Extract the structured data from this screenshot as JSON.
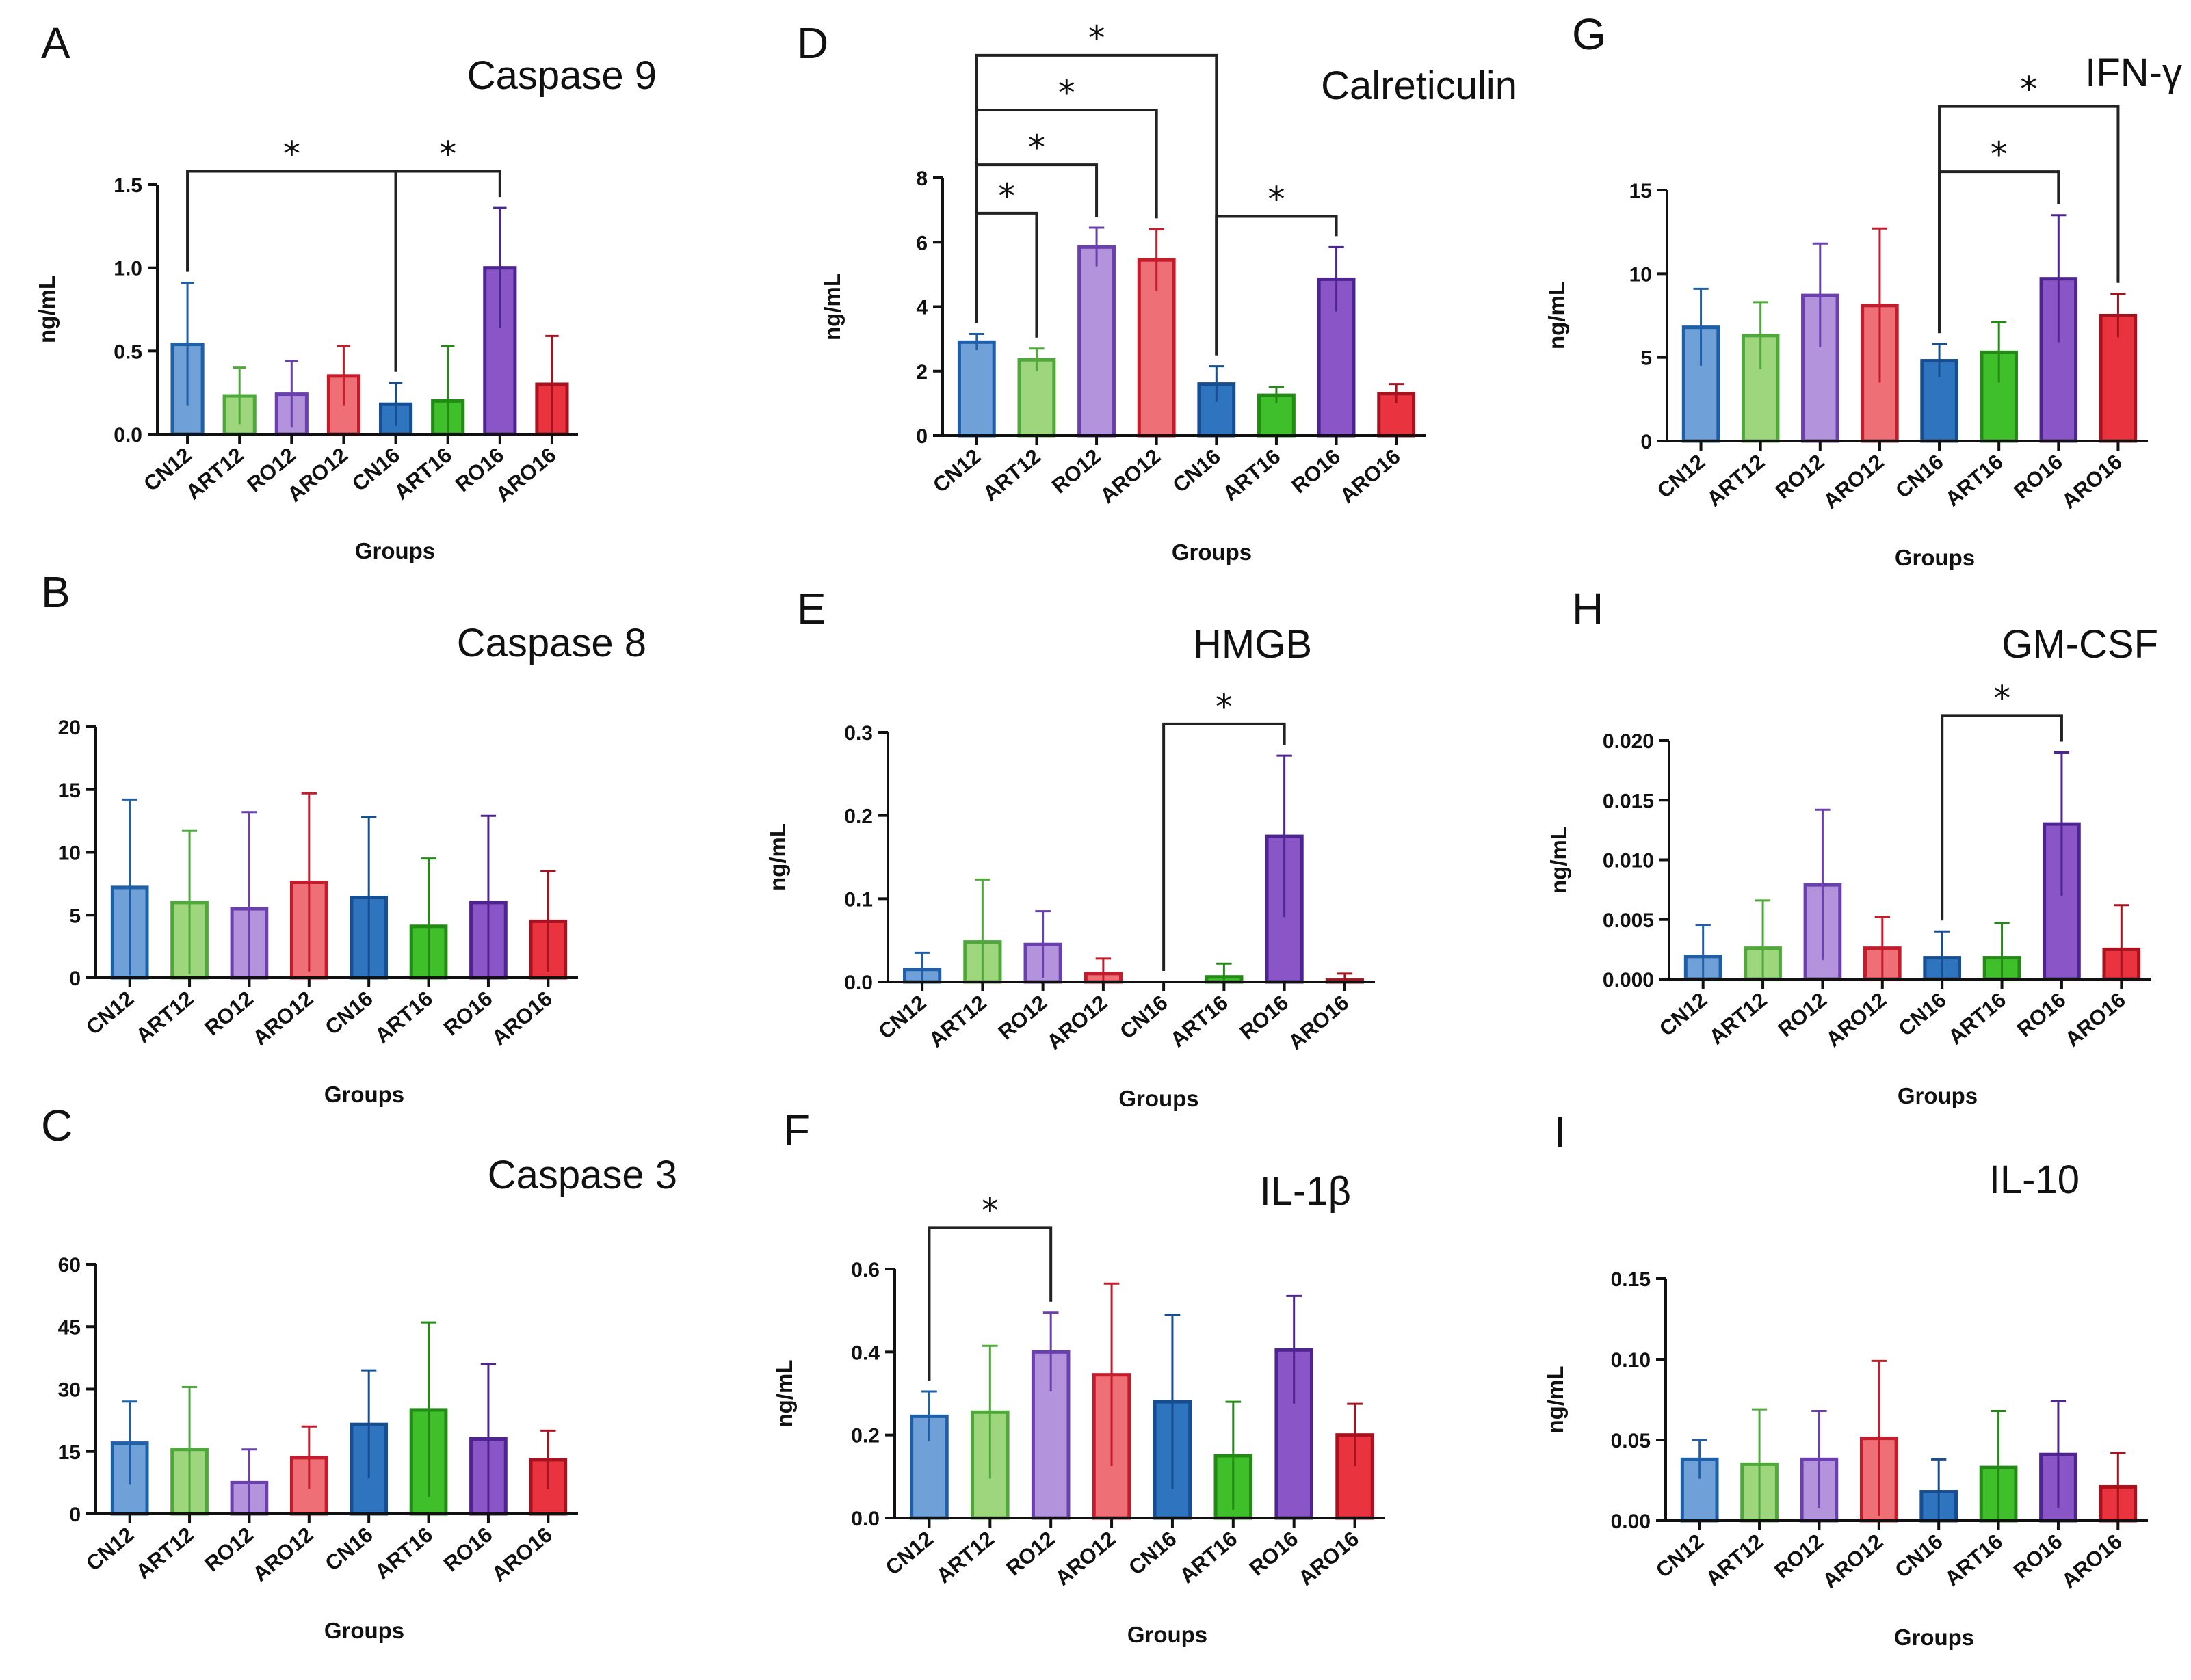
{
  "palette": {
    "CN12": {
      "fill": "#6fa0d8",
      "stroke": "#1f5fa8"
    },
    "ART12": {
      "fill": "#9ed67e",
      "stroke": "#4fa83a"
    },
    "RO12": {
      "fill": "#b394dc",
      "stroke": "#6a3fae"
    },
    "ARO12": {
      "fill": "#ef6f77",
      "stroke": "#c41c2b"
    },
    "CN16": {
      "fill": "#2f74bf",
      "stroke": "#174d91"
    },
    "ART16": {
      "fill": "#3fbf2a",
      "stroke": "#238a16"
    },
    "RO16": {
      "fill": "#8a55c6",
      "stroke": "#4e2590"
    },
    "ARO16": {
      "fill": "#e9333f",
      "stroke": "#a8121e"
    }
  },
  "chart_data": [
    {
      "id": "A",
      "type": "bar",
      "title": "Caspase 9",
      "ylabel": "ng/mL",
      "xlabel": "Groups",
      "categories": [
        "CN12",
        "ART12",
        "RO12",
        "ARO12",
        "CN16",
        "ART16",
        "RO16",
        "ARO16"
      ],
      "values": [
        0.54,
        0.23,
        0.24,
        0.35,
        0.18,
        0.2,
        1.0,
        0.3
      ],
      "errors": [
        0.37,
        0.17,
        0.2,
        0.18,
        0.13,
        0.33,
        0.36,
        0.29
      ],
      "ylim": [
        0,
        1.5
      ],
      "ticks": [
        0,
        0.5,
        1.0,
        1.5
      ],
      "tick_labels": [
        "0.0",
        "0.5",
        "1.0",
        "1.5"
      ],
      "sig": [
        {
          "from": 0,
          "to": 4,
          "level": 1.58,
          "label": "*"
        },
        {
          "from": 4,
          "to": 6,
          "level": 1.58,
          "label": "*"
        }
      ]
    },
    {
      "id": "B",
      "type": "bar",
      "title": "Caspase 8",
      "ylabel": "ng/mL",
      "xlabel": "Groups",
      "categories": [
        "CN12",
        "ART12",
        "RO12",
        "ARO12",
        "CN16",
        "ART16",
        "RO16",
        "ARO16"
      ],
      "values": [
        7.2,
        6.0,
        5.5,
        7.6,
        6.4,
        4.1,
        6.0,
        4.5
      ],
      "errors": [
        7.0,
        5.7,
        7.7,
        7.1,
        6.4,
        5.4,
        6.9,
        4.0
      ],
      "ylim": [
        0,
        20
      ],
      "ticks": [
        0,
        5,
        10,
        15,
        20
      ],
      "tick_labels": [
        "0",
        "5",
        "10",
        "15",
        "20"
      ],
      "sig": []
    },
    {
      "id": "C",
      "type": "bar",
      "title": "Caspase 3",
      "ylabel": "ng/mL",
      "xlabel": "Groups",
      "categories": [
        "CN12",
        "ART12",
        "RO12",
        "ARO12",
        "CN16",
        "ART16",
        "RO16",
        "ARO16"
      ],
      "values": [
        17.0,
        15.5,
        7.5,
        13.5,
        21.5,
        25.0,
        18.0,
        13.0
      ],
      "errors": [
        10.0,
        15.0,
        8.0,
        7.5,
        13.0,
        21.0,
        18.0,
        7.0
      ],
      "ylim": [
        0,
        60
      ],
      "ticks": [
        0,
        15,
        30,
        45,
        60
      ],
      "tick_labels": [
        "0",
        "15",
        "30",
        "45",
        "60"
      ],
      "sig": []
    },
    {
      "id": "D",
      "type": "bar",
      "title": "Calreticulin",
      "ylabel": "ng/mL",
      "xlabel": "Groups",
      "categories": [
        "CN12",
        "ART12",
        "RO12",
        "ARO12",
        "CN16",
        "ART16",
        "RO16",
        "ARO16"
      ],
      "values": [
        2.9,
        2.35,
        5.85,
        5.45,
        1.6,
        1.25,
        4.85,
        1.3
      ],
      "errors": [
        0.25,
        0.35,
        0.6,
        0.95,
        0.55,
        0.25,
        1.0,
        0.3
      ],
      "ylim": [
        0,
        8
      ],
      "ticks": [
        0,
        2,
        4,
        6,
        8
      ],
      "tick_labels": [
        "0",
        "2",
        "4",
        "6",
        "8"
      ],
      "sig": [
        {
          "from": 0,
          "to": 1,
          "level": 6.9,
          "label": "*"
        },
        {
          "from": 0,
          "to": 2,
          "level": 8.4,
          "label": "*"
        },
        {
          "from": 0,
          "to": 3,
          "level": 10.1,
          "label": "*"
        },
        {
          "from": 0,
          "to": 4,
          "level": 11.8,
          "label": "*"
        },
        {
          "from": 4,
          "to": 6,
          "level": 6.8,
          "label": "*"
        }
      ]
    },
    {
      "id": "E",
      "type": "bar",
      "title": "HMGB",
      "ylabel": "ng/mL",
      "xlabel": "Groups",
      "categories": [
        "CN12",
        "ART12",
        "RO12",
        "ARO12",
        "CN16",
        "ART16",
        "RO16",
        "ARO16"
      ],
      "values": [
        0.015,
        0.048,
        0.045,
        0.01,
        0.0,
        0.006,
        0.175,
        0.002
      ],
      "errors": [
        0.02,
        0.075,
        0.04,
        0.018,
        0.0,
        0.016,
        0.097,
        0.008
      ],
      "ylim": [
        0,
        0.3
      ],
      "ticks": [
        0,
        0.1,
        0.2,
        0.3
      ],
      "tick_labels": [
        "0.0",
        "0.1",
        "0.2",
        "0.3"
      ],
      "sig": [
        {
          "from": 4,
          "to": 6,
          "level": 0.31,
          "label": "*"
        }
      ]
    },
    {
      "id": "F",
      "type": "bar",
      "title": "IL-1β",
      "ylabel": "ng/mL",
      "xlabel": "Groups",
      "categories": [
        "CN12",
        "ART12",
        "RO12",
        "ARO12",
        "CN16",
        "ART16",
        "RO16",
        "ARO16"
      ],
      "values": [
        0.245,
        0.255,
        0.4,
        0.345,
        0.28,
        0.15,
        0.405,
        0.2
      ],
      "errors": [
        0.06,
        0.16,
        0.095,
        0.22,
        0.21,
        0.13,
        0.13,
        0.075
      ],
      "ylim": [
        0,
        0.6
      ],
      "ticks": [
        0,
        0.2,
        0.4,
        0.6
      ],
      "tick_labels": [
        "0.0",
        "0.2",
        "0.4",
        "0.6"
      ],
      "sig": [
        {
          "from": 0,
          "to": 2,
          "level": 0.7,
          "label": "*"
        }
      ]
    },
    {
      "id": "G",
      "type": "bar",
      "title": "IFN-γ",
      "ylabel": "ng/mL",
      "xlabel": "Groups",
      "categories": [
        "CN12",
        "ART12",
        "RO12",
        "ARO12",
        "CN16",
        "ART16",
        "RO16",
        "ARO16"
      ],
      "values": [
        6.8,
        6.3,
        8.7,
        8.1,
        4.8,
        5.3,
        9.7,
        7.5
      ],
      "errors": [
        2.3,
        2.0,
        3.1,
        4.6,
        1.0,
        1.8,
        3.8,
        1.3
      ],
      "ylim": [
        0,
        15
      ],
      "ticks": [
        0,
        5,
        10,
        15
      ],
      "tick_labels": [
        "0",
        "5",
        "10",
        "15"
      ],
      "sig": [
        {
          "from": 4,
          "to": 6,
          "level": 16.1,
          "label": "*"
        },
        {
          "from": 4,
          "to": 7,
          "level": 20.0,
          "label": "*"
        }
      ]
    },
    {
      "id": "H",
      "type": "bar",
      "title": "GM-CSF",
      "ylabel": "ng/mL",
      "xlabel": "Groups",
      "categories": [
        "CN12",
        "ART12",
        "RO12",
        "ARO12",
        "CN16",
        "ART16",
        "RO16",
        "ARO16"
      ],
      "values": [
        0.0019,
        0.0026,
        0.0079,
        0.0026,
        0.0018,
        0.0018,
        0.013,
        0.0025
      ],
      "errors": [
        0.0026,
        0.004,
        0.0063,
        0.0026,
        0.0022,
        0.0029,
        0.006,
        0.0037
      ],
      "ylim": [
        0,
        0.02
      ],
      "ticks": [
        0,
        0.005,
        0.01,
        0.015,
        0.02
      ],
      "tick_labels": [
        "0.000",
        "0.005",
        "0.010",
        "0.015",
        "0.020"
      ],
      "sig": [
        {
          "from": 4,
          "to": 6,
          "level": 0.0221,
          "label": "*"
        }
      ]
    },
    {
      "id": "I",
      "type": "bar",
      "title": "IL-10",
      "ylabel": "ng/mL",
      "xlabel": "Groups",
      "categories": [
        "CN12",
        "ART12",
        "RO12",
        "ARO12",
        "CN16",
        "ART16",
        "RO16",
        "ARO16"
      ],
      "values": [
        0.038,
        0.035,
        0.038,
        0.051,
        0.018,
        0.033,
        0.041,
        0.021
      ],
      "errors": [
        0.012,
        0.034,
        0.03,
        0.048,
        0.02,
        0.035,
        0.033,
        0.021
      ],
      "ylim": [
        0,
        0.15
      ],
      "ticks": [
        0,
        0.05,
        0.1,
        0.15
      ],
      "tick_labels": [
        "0.00",
        "0.05",
        "0.10",
        "0.15"
      ],
      "sig": []
    }
  ]
}
